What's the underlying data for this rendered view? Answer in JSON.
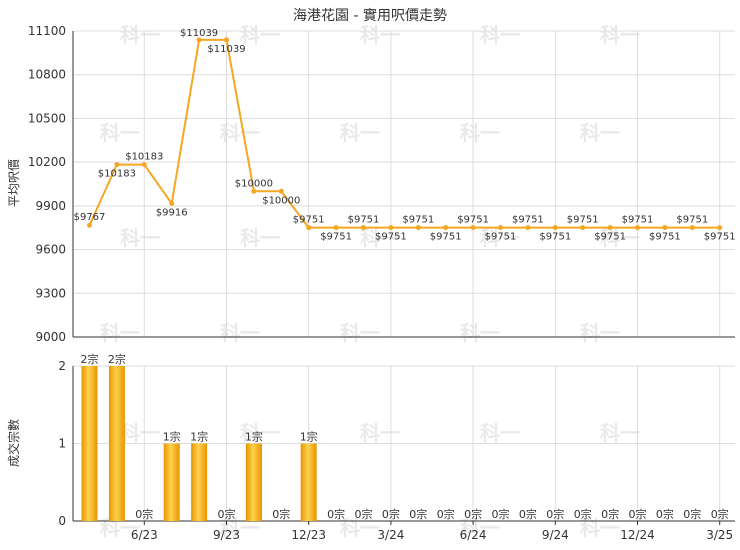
{
  "chart_data": [
    {
      "type": "line",
      "title": "海港花園 - 實用呎價走勢",
      "ylabel": "平均呎價",
      "ylim": [
        9000,
        11100
      ],
      "yticks": [
        9000,
        9300,
        9600,
        9900,
        10200,
        10500,
        10800,
        11100
      ],
      "x_tick_labels": [
        "6/23",
        "9/23",
        "12/23",
        "3/24",
        "6/24",
        "9/24",
        "12/24",
        "3/25"
      ],
      "x_tick_month_index": [
        2,
        5,
        8,
        11,
        14,
        17,
        20,
        23
      ],
      "months": 24,
      "series": [
        {
          "color": "#f5a623",
          "values": [
            9767,
            10183,
            10183,
            9916,
            11039,
            11039,
            10000,
            10000,
            9751,
            9751,
            9751,
            9751,
            9751,
            9751,
            9751,
            9751,
            9751,
            9751,
            9751,
            9751,
            9751,
            9751,
            9751,
            9751
          ],
          "labels": [
            "$9767",
            "$10183",
            "$10183",
            "$9916",
            "$11039",
            "$11039",
            "$10000",
            "$10000",
            "$9751",
            "$9751",
            "$9751",
            "$9751",
            "$9751",
            "$9751",
            "$9751",
            "$9751",
            "$9751",
            "$9751",
            "$9751",
            "$9751",
            "$9751",
            "$9751",
            "$9751",
            "$9751"
          ]
        }
      ],
      "grid": true
    },
    {
      "type": "bar",
      "ylabel": "成交宗數",
      "ylim": [
        0,
        2
      ],
      "yticks": [
        0,
        1,
        2
      ],
      "values": [
        2,
        2,
        0,
        1,
        1,
        0,
        1,
        0,
        1,
        0,
        0,
        0,
        0,
        0,
        0,
        0,
        0,
        0,
        0,
        0,
        0,
        0,
        0,
        0
      ],
      "labels": [
        "2宗",
        "2宗",
        "0宗",
        "1宗",
        "1宗",
        "0宗",
        "1宗",
        "0宗",
        "1宗",
        "0宗",
        "0宗",
        "0宗",
        "0宗",
        "0宗",
        "0宗",
        "0宗",
        "0宗",
        "0宗",
        "0宗",
        "0宗",
        "0宗",
        "0宗",
        "0宗",
        "0宗"
      ],
      "grid": true
    }
  ],
  "watermark": "科一"
}
